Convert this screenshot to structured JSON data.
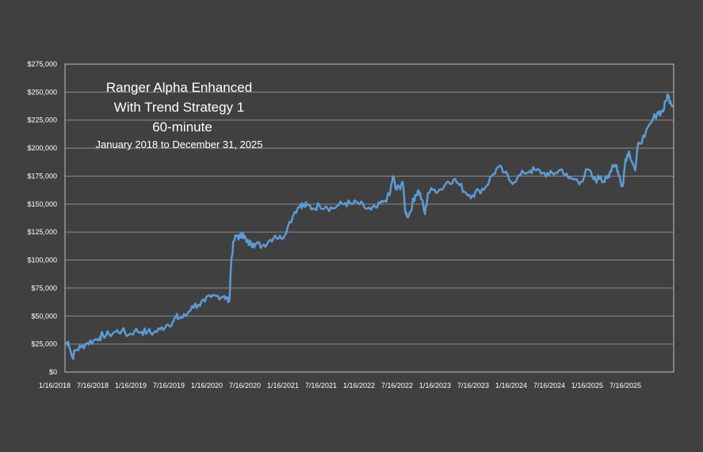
{
  "chart_data": {
    "type": "line",
    "title_lines": [
      "Ranger Alpha Enhanced",
      "With Trend Strategy 1",
      "60-minute"
    ],
    "subtitle": "January 2018 to December 31, 2025",
    "xlabel": "",
    "ylabel": "",
    "ylim": [
      0,
      275000
    ],
    "y_ticks": [
      0,
      25000,
      50000,
      75000,
      100000,
      125000,
      150000,
      175000,
      200000,
      225000,
      250000,
      275000
    ],
    "y_tick_labels": [
      "$0",
      "$25,000",
      "$50,000",
      "$75,000",
      "$100,000",
      "$125,000",
      "$150,000",
      "$175,000",
      "$200,000",
      "$225,000",
      "$250,000",
      "$275,000"
    ],
    "x_tick_labels": [
      "1/16/2018",
      "7/16/2018",
      "1/16/2019",
      "7/16/2019",
      "1/16/2020",
      "7/16/2020",
      "1/16/2021",
      "7/16/2021",
      "1/16/2022",
      "7/16/2022",
      "1/16/2023",
      "7/16/2023",
      "1/16/2024",
      "7/16/2024",
      "1/16/2025",
      "7/16/2025"
    ],
    "grid": true,
    "line_color": "#5b9bd5",
    "series": [
      {
        "x": [
          "2018-01-16",
          "2018-02-01",
          "2018-02-20",
          "2018-03-10",
          "2018-04-01",
          "2018-05-01",
          "2018-06-01",
          "2018-07-01",
          "2018-07-16",
          "2018-08-15",
          "2018-09-15",
          "2018-10-15",
          "2018-11-15",
          "2018-12-15",
          "2019-01-16",
          "2019-02-15",
          "2019-03-15",
          "2019-04-15",
          "2019-05-15",
          "2019-06-15",
          "2019-07-01",
          "2019-07-16",
          "2019-08-15",
          "2019-09-15",
          "2019-10-15",
          "2019-11-15",
          "2019-12-15",
          "2020-01-16",
          "2020-02-15",
          "2020-03-01",
          "2020-03-10",
          "2020-03-20",
          "2020-04-01",
          "2020-04-15",
          "2020-05-01",
          "2020-05-15",
          "2020-06-01",
          "2020-06-15",
          "2020-07-01",
          "2020-07-16",
          "2020-08-15",
          "2020-09-15",
          "2020-10-15",
          "2020-11-15",
          "2020-12-15",
          "2021-01-16",
          "2021-02-15",
          "2021-03-01",
          "2021-03-15",
          "2021-04-15",
          "2021-05-15",
          "2021-06-15",
          "2021-07-16",
          "2021-08-15",
          "2021-09-15",
          "2021-10-15",
          "2021-11-15",
          "2021-12-15",
          "2022-01-16",
          "2022-02-15",
          "2022-03-15",
          "2022-04-15",
          "2022-05-01",
          "2022-05-15",
          "2022-06-01",
          "2022-06-15",
          "2022-07-01",
          "2022-07-16",
          "2022-08-01",
          "2022-08-15",
          "2022-09-01",
          "2022-09-15",
          "2022-10-01",
          "2022-10-15",
          "2022-11-15",
          "2022-12-15",
          "2023-01-16",
          "2023-02-15",
          "2023-03-15",
          "2023-04-15",
          "2023-05-15",
          "2023-06-15",
          "2023-07-16",
          "2023-08-15",
          "2023-09-15",
          "2023-10-15",
          "2023-11-15",
          "2023-12-15",
          "2024-01-16",
          "2024-02-15",
          "2024-03-15",
          "2024-04-15",
          "2024-05-15",
          "2024-06-15",
          "2024-07-16",
          "2024-08-15",
          "2024-09-15",
          "2024-10-15",
          "2024-11-15",
          "2024-12-15",
          "2025-01-01",
          "2025-01-16",
          "2025-02-01",
          "2025-02-15",
          "2025-03-01",
          "2025-03-15",
          "2025-04-01",
          "2025-04-10",
          "2025-05-01",
          "2025-05-15",
          "2025-06-01",
          "2025-07-01",
          "2025-07-16",
          "2025-08-15",
          "2025-09-15",
          "2025-10-15",
          "2025-11-01",
          "2025-11-15",
          "2025-12-01",
          "2025-12-15",
          "2025-12-31"
        ],
        "values": [
          25000,
          27000,
          13000,
          20000,
          22000,
          26000,
          28000,
          31000,
          33000,
          33500,
          36000,
          37000,
          33000,
          37000,
          36000,
          36000,
          35000,
          38000,
          42000,
          45000,
          49000,
          48000,
          50000,
          59000,
          60000,
          63000,
          67000,
          68000,
          68000,
          65000,
          63000,
          100000,
          117000,
          122000,
          120000,
          124000,
          116000,
          115000,
          115000,
          114000,
          113000,
          117000,
          122000,
          119000,
          130000,
          143000,
          150000,
          148000,
          149000,
          146000,
          149000,
          148000,
          146000,
          149000,
          151000,
          150000,
          151000,
          147000,
          145000,
          147000,
          152000,
          158000,
          175000,
          163000,
          165000,
          170000,
          141000,
          140000,
          150000,
          158000,
          162000,
          154000,
          141000,
          160000,
          163000,
          163000,
          170000,
          172000,
          167000,
          160000,
          158000,
          162000,
          165000,
          175000,
          183000,
          178000,
          170000,
          173000,
          178000,
          180000,
          180000,
          178000,
          176000,
          178000,
          181000,
          173000,
          172000,
          170000,
          181000,
          172000,
          172000,
          175000,
          170000,
          173000,
          178000,
          185000,
          185000,
          177000,
          166000,
          190000,
          197000,
          180000,
          205000,
          210000,
          223000,
          232000,
          232000,
          235000,
          248000,
          242000,
          238000
        ]
      }
    ]
  }
}
